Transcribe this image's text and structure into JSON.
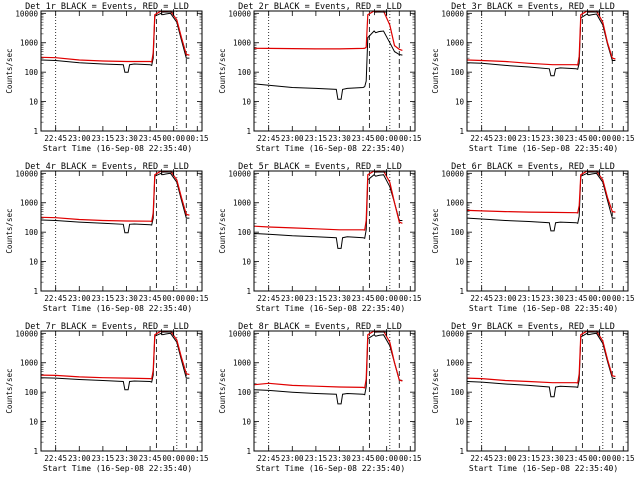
{
  "figure": {
    "xlabel": "Start Time (16-Sep-08 22:35:40)",
    "ylabel": "Counts/sec",
    "x_tick_labels": [
      "22:45",
      "23:00",
      "23:15",
      "23:30",
      "23:45",
      "00:00",
      "00:15"
    ],
    "y_tick_labels": [
      "1",
      "10",
      "100",
      "1000",
      "10000"
    ],
    "colors": {
      "events": "#000000",
      "lld": "#e00000"
    }
  },
  "chart_data": [
    {
      "type": "line",
      "title": "Det 1r BLACK = Events, RED = LLD",
      "xlabel": "Start Time (16-Sep-08 22:35:40)",
      "ylabel": "Counts/sec",
      "y_scale": "log",
      "ylim": [
        1,
        12000
      ],
      "xlim": [
        "22:35:40",
        "00:18"
      ],
      "series": [
        {
          "name": "Events",
          "color": "#000000",
          "x": [
            "22:36",
            "22:45",
            "23:00",
            "23:15",
            "23:28",
            "23:29",
            "23:31",
            "23:32",
            "23:35",
            "23:45",
            "23:46",
            "23:47",
            "23:48",
            "23:52",
            "23:53",
            "23:55",
            "23:58",
            "00:02",
            "00:05",
            "00:08",
            "00:10"
          ],
          "y": [
            260,
            250,
            210,
            190,
            180,
            100,
            100,
            180,
            190,
            180,
            170,
            300,
            8000,
            10000,
            9000,
            9500,
            10000,
            5000,
            1200,
            300,
            300
          ]
        },
        {
          "name": "LLD",
          "color": "#e00000",
          "x": [
            "22:36",
            "22:45",
            "23:00",
            "23:15",
            "23:30",
            "23:45",
            "23:46",
            "23:47",
            "23:48",
            "23:52",
            "23:53",
            "23:55",
            "23:58",
            "00:02",
            "00:05",
            "00:08",
            "00:10"
          ],
          "y": [
            320,
            310,
            260,
            240,
            230,
            230,
            220,
            450,
            9000,
            12000,
            11000,
            11500,
            12000,
            6000,
            1500,
            400,
            380
          ]
        }
      ]
    },
    {
      "type": "line",
      "title": "Det 2r BLACK = Events, RED = LLD",
      "xlabel": "Start Time (16-Sep-08 22:35:40)",
      "ylabel": "Counts/sec",
      "y_scale": "log",
      "ylim": [
        1,
        12000
      ],
      "xlim": [
        "22:35:40",
        "00:18"
      ],
      "series": [
        {
          "name": "Events",
          "color": "#000000",
          "x": [
            "22:36",
            "22:45",
            "23:00",
            "23:15",
            "23:28",
            "23:29",
            "23:31",
            "23:32",
            "23:35",
            "23:45",
            "23:46",
            "23:47",
            "23:48",
            "23:52",
            "23:53",
            "23:55",
            "23:58",
            "00:02",
            "00:05",
            "00:08",
            "00:10"
          ],
          "y": [
            40,
            36,
            30,
            28,
            26,
            12,
            12,
            26,
            28,
            30,
            32,
            50,
            1500,
            2500,
            2200,
            2400,
            2500,
            1000,
            500,
            400,
            380
          ]
        },
        {
          "name": "LLD",
          "color": "#e00000",
          "x": [
            "22:36",
            "22:45",
            "23:00",
            "23:15",
            "23:30",
            "23:45",
            "23:46",
            "23:47",
            "23:48",
            "23:52",
            "23:53",
            "23:55",
            "23:58",
            "00:02",
            "00:05",
            "00:08",
            "00:10"
          ],
          "y": [
            650,
            640,
            630,
            620,
            620,
            640,
            650,
            700,
            9000,
            12000,
            11000,
            11500,
            12000,
            4000,
            800,
            600,
            550
          ]
        }
      ]
    },
    {
      "type": "line",
      "title": "Det 3r BLACK = Events, RED = LLD",
      "xlabel": "Start Time (16-Sep-08 22:35:40)",
      "ylabel": "Counts/sec",
      "y_scale": "log",
      "ylim": [
        1,
        12000
      ],
      "xlim": [
        "22:35:40",
        "00:18"
      ],
      "series": [
        {
          "name": "Events",
          "color": "#000000",
          "x": [
            "22:36",
            "22:45",
            "23:00",
            "23:15",
            "23:28",
            "23:29",
            "23:31",
            "23:32",
            "23:35",
            "23:45",
            "23:46",
            "23:47",
            "23:48",
            "23:52",
            "23:53",
            "23:55",
            "23:58",
            "00:02",
            "00:05",
            "00:08",
            "00:10"
          ],
          "y": [
            210,
            200,
            170,
            150,
            130,
            75,
            75,
            130,
            140,
            130,
            125,
            200,
            7000,
            9500,
            8500,
            9000,
            9500,
            4000,
            900,
            250,
            250
          ]
        },
        {
          "name": "LLD",
          "color": "#e00000",
          "x": [
            "22:36",
            "22:45",
            "23:00",
            "23:15",
            "23:30",
            "23:45",
            "23:46",
            "23:47",
            "23:48",
            "23:52",
            "23:53",
            "23:55",
            "23:58",
            "00:02",
            "00:05",
            "00:08",
            "00:10"
          ],
          "y": [
            260,
            250,
            230,
            200,
            180,
            180,
            175,
            350,
            9000,
            12000,
            11000,
            11500,
            12000,
            5000,
            1000,
            300,
            280
          ]
        }
      ]
    },
    {
      "type": "line",
      "title": "Det 4r BLACK = Events, RED = LLD",
      "xlabel": "Start Time (16-Sep-08 22:35:40)",
      "ylabel": "Counts/sec",
      "y_scale": "log",
      "ylim": [
        1,
        12000
      ],
      "xlim": [
        "22:35:40",
        "00:18"
      ],
      "series": [
        {
          "name": "Events",
          "color": "#000000",
          "x": [
            "22:36",
            "22:45",
            "23:00",
            "23:15",
            "23:28",
            "23:29",
            "23:31",
            "23:32",
            "23:35",
            "23:45",
            "23:46",
            "23:47",
            "23:48",
            "23:52",
            "23:53",
            "23:55",
            "23:58",
            "00:02",
            "00:05",
            "00:08",
            "00:10"
          ],
          "y": [
            260,
            250,
            220,
            200,
            185,
            95,
            95,
            185,
            190,
            180,
            175,
            300,
            8000,
            10000,
            9000,
            9500,
            10000,
            5000,
            1200,
            300,
            300
          ]
        },
        {
          "name": "LLD",
          "color": "#e00000",
          "x": [
            "22:36",
            "22:45",
            "23:00",
            "23:15",
            "23:30",
            "23:45",
            "23:46",
            "23:47",
            "23:48",
            "23:52",
            "23:53",
            "23:55",
            "23:58",
            "00:02",
            "00:05",
            "00:08",
            "00:10"
          ],
          "y": [
            320,
            310,
            270,
            250,
            240,
            235,
            230,
            450,
            9000,
            12000,
            11000,
            11500,
            12000,
            6000,
            1500,
            400,
            380
          ]
        }
      ]
    },
    {
      "type": "line",
      "title": "Det 5r BLACK = Events, RED = LLD",
      "xlabel": "Start Time (16-Sep-08 22:35:40)",
      "ylabel": "Counts/sec",
      "y_scale": "log",
      "ylim": [
        1,
        12000
      ],
      "xlim": [
        "22:35:40",
        "00:18"
      ],
      "series": [
        {
          "name": "Events",
          "color": "#000000",
          "x": [
            "22:36",
            "22:45",
            "23:00",
            "23:15",
            "23:28",
            "23:29",
            "23:31",
            "23:32",
            "23:35",
            "23:45",
            "23:46",
            "23:47",
            "23:48",
            "23:52",
            "23:53",
            "23:55",
            "23:58",
            "00:02",
            "00:05",
            "00:08",
            "00:10"
          ],
          "y": [
            90,
            85,
            75,
            70,
            65,
            28,
            28,
            65,
            70,
            65,
            62,
            120,
            6000,
            9000,
            8000,
            8500,
            9000,
            3500,
            1000,
            250,
            250
          ]
        },
        {
          "name": "LLD",
          "color": "#e00000",
          "x": [
            "22:36",
            "22:45",
            "23:00",
            "23:15",
            "23:30",
            "23:45",
            "23:46",
            "23:47",
            "23:48",
            "23:52",
            "23:53",
            "23:55",
            "23:58",
            "00:02",
            "00:05",
            "00:08",
            "00:10"
          ],
          "y": [
            160,
            150,
            140,
            130,
            120,
            120,
            118,
            250,
            9000,
            12000,
            11000,
            11500,
            12000,
            5000,
            1000,
            220,
            200
          ]
        }
      ]
    },
    {
      "type": "line",
      "title": "Det 6r BLACK = Events, RED = LLD",
      "xlabel": "Start Time (16-Sep-08 22:35:40)",
      "ylabel": "Counts/sec",
      "y_scale": "log",
      "ylim": [
        1,
        12000
      ],
      "xlim": [
        "22:35:40",
        "00:18"
      ],
      "series": [
        {
          "name": "Events",
          "color": "#000000",
          "x": [
            "22:36",
            "22:45",
            "23:00",
            "23:15",
            "23:28",
            "23:29",
            "23:31",
            "23:32",
            "23:35",
            "23:45",
            "23:46",
            "23:47",
            "23:48",
            "23:52",
            "23:53",
            "23:55",
            "23:58",
            "00:02",
            "00:05",
            "00:08",
            "00:10"
          ],
          "y": [
            300,
            280,
            250,
            230,
            210,
            110,
            110,
            210,
            220,
            210,
            200,
            350,
            8000,
            10000,
            9000,
            9500,
            10000,
            5000,
            1200,
            300,
            300
          ]
        },
        {
          "name": "LLD",
          "color": "#e00000",
          "x": [
            "22:36",
            "22:45",
            "23:00",
            "23:15",
            "23:30",
            "23:45",
            "23:46",
            "23:47",
            "23:48",
            "23:52",
            "23:53",
            "23:55",
            "23:58",
            "00:02",
            "00:05",
            "00:08",
            "00:10"
          ],
          "y": [
            550,
            530,
            500,
            480,
            470,
            460,
            450,
            800,
            9000,
            12000,
            11000,
            11500,
            12000,
            6000,
            1500,
            500,
            480
          ]
        }
      ]
    },
    {
      "type": "line",
      "title": "Det 7r BLACK = Events, RED = LLD",
      "xlabel": "Start Time (16-Sep-08 22:35:40)",
      "ylabel": "Counts/sec",
      "y_scale": "log",
      "ylim": [
        1,
        12000
      ],
      "xlim": [
        "22:35:40",
        "00:18"
      ],
      "series": [
        {
          "name": "Events",
          "color": "#000000",
          "x": [
            "22:36",
            "22:45",
            "23:00",
            "23:15",
            "23:28",
            "23:29",
            "23:31",
            "23:32",
            "23:35",
            "23:45",
            "23:46",
            "23:47",
            "23:48",
            "23:52",
            "23:53",
            "23:55",
            "23:58",
            "00:02",
            "00:05",
            "00:08",
            "00:10"
          ],
          "y": [
            310,
            300,
            270,
            250,
            230,
            120,
            120,
            230,
            240,
            230,
            220,
            380,
            8000,
            10000,
            9000,
            9500,
            10000,
            5000,
            1200,
            300,
            300
          ]
        },
        {
          "name": "LLD",
          "color": "#e00000",
          "x": [
            "22:36",
            "22:45",
            "23:00",
            "23:15",
            "23:30",
            "23:45",
            "23:46",
            "23:47",
            "23:48",
            "23:52",
            "23:53",
            "23:55",
            "23:58",
            "00:02",
            "00:05",
            "00:08",
            "00:10"
          ],
          "y": [
            380,
            370,
            330,
            310,
            300,
            290,
            285,
            550,
            9000,
            12000,
            11000,
            11500,
            12000,
            6000,
            1500,
            420,
            400
          ]
        }
      ]
    },
    {
      "type": "line",
      "title": "Det 8r BLACK = Events, RED = LLD",
      "xlabel": "Start Time (16-Sep-08 22:35:40)",
      "ylabel": "Counts/sec",
      "y_scale": "log",
      "ylim": [
        1,
        12000
      ],
      "xlim": [
        "22:35:40",
        "00:18"
      ],
      "series": [
        {
          "name": "Events",
          "color": "#000000",
          "x": [
            "22:36",
            "22:45",
            "23:00",
            "23:15",
            "23:28",
            "23:29",
            "23:31",
            "23:32",
            "23:35",
            "23:45",
            "23:46",
            "23:47",
            "23:48",
            "23:52",
            "23:53",
            "23:55",
            "23:58",
            "00:02",
            "00:05",
            "00:08",
            "00:10"
          ],
          "y": [
            120,
            115,
            100,
            90,
            85,
            40,
            40,
            85,
            90,
            85,
            82,
            150,
            6500,
            9000,
            8000,
            8500,
            9000,
            3800,
            1000,
            260,
            250
          ]
        },
        {
          "name": "LLD",
          "color": "#e00000",
          "x": [
            "22:36",
            "22:45",
            "23:00",
            "23:15",
            "23:30",
            "23:45",
            "23:46",
            "23:47",
            "23:48",
            "23:52",
            "23:53",
            "23:55",
            "23:58",
            "00:02",
            "00:05",
            "00:08",
            "00:10"
          ],
          "y": [
            180,
            200,
            170,
            160,
            150,
            145,
            140,
            280,
            9000,
            12000,
            11000,
            11500,
            12000,
            5000,
            1000,
            260,
            240
          ]
        }
      ]
    },
    {
      "type": "line",
      "title": "Det 9r BLACK = Events, RED = LLD",
      "xlabel": "Start Time (16-Sep-08 22:35:40)",
      "ylabel": "Counts/sec",
      "y_scale": "log",
      "ylim": [
        1,
        12000
      ],
      "xlim": [
        "22:35:40",
        "00:18"
      ],
      "series": [
        {
          "name": "Events",
          "color": "#000000",
          "x": [
            "22:36",
            "22:45",
            "23:00",
            "23:15",
            "23:28",
            "23:29",
            "23:31",
            "23:32",
            "23:35",
            "23:45",
            "23:46",
            "23:47",
            "23:48",
            "23:52",
            "23:53",
            "23:55",
            "23:58",
            "00:02",
            "00:05",
            "00:08",
            "00:10"
          ],
          "y": [
            230,
            220,
            190,
            170,
            150,
            70,
            70,
            150,
            160,
            150,
            145,
            260,
            7500,
            10000,
            9000,
            9500,
            10000,
            4500,
            1100,
            300,
            290
          ]
        },
        {
          "name": "LLD",
          "color": "#e00000",
          "x": [
            "22:36",
            "22:45",
            "23:00",
            "23:15",
            "23:30",
            "23:45",
            "23:46",
            "23:47",
            "23:48",
            "23:52",
            "23:53",
            "23:55",
            "23:58",
            "00:02",
            "00:05",
            "00:08",
            "00:10"
          ],
          "y": [
            300,
            290,
            250,
            230,
            210,
            210,
            205,
            420,
            9000,
            12000,
            11000,
            11500,
            12000,
            5500,
            1300,
            360,
            340
          ]
        }
      ]
    }
  ]
}
